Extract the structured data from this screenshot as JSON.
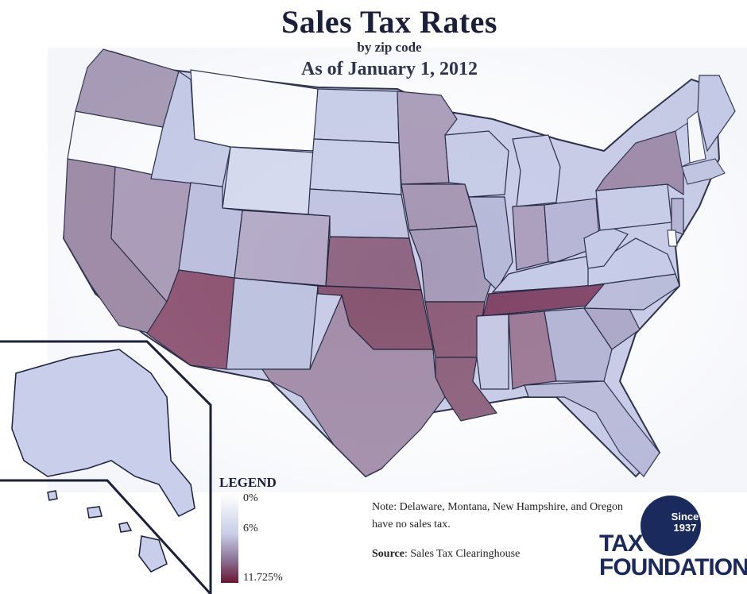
{
  "header": {
    "title": "Sales Tax Rates",
    "subtitle": "by zip code",
    "date": "As of January 1, 2012"
  },
  "legend": {
    "title": "LEGEND",
    "labels": [
      "0%",
      "6%",
      "11.725%"
    ],
    "colors": [
      "#ffffff",
      "#c9cde8",
      "#6b1530"
    ]
  },
  "note": "Note: Delaware, Montana, New Hampshire, and Oregon have no sales tax.",
  "source": {
    "label": "Source",
    "text": ": Sales Tax Clearinghouse"
  },
  "logo": {
    "since_line1": "Since",
    "since_line2": "1937",
    "name_line1": "TAX",
    "name_line2": "FOUNDATION"
  }
}
